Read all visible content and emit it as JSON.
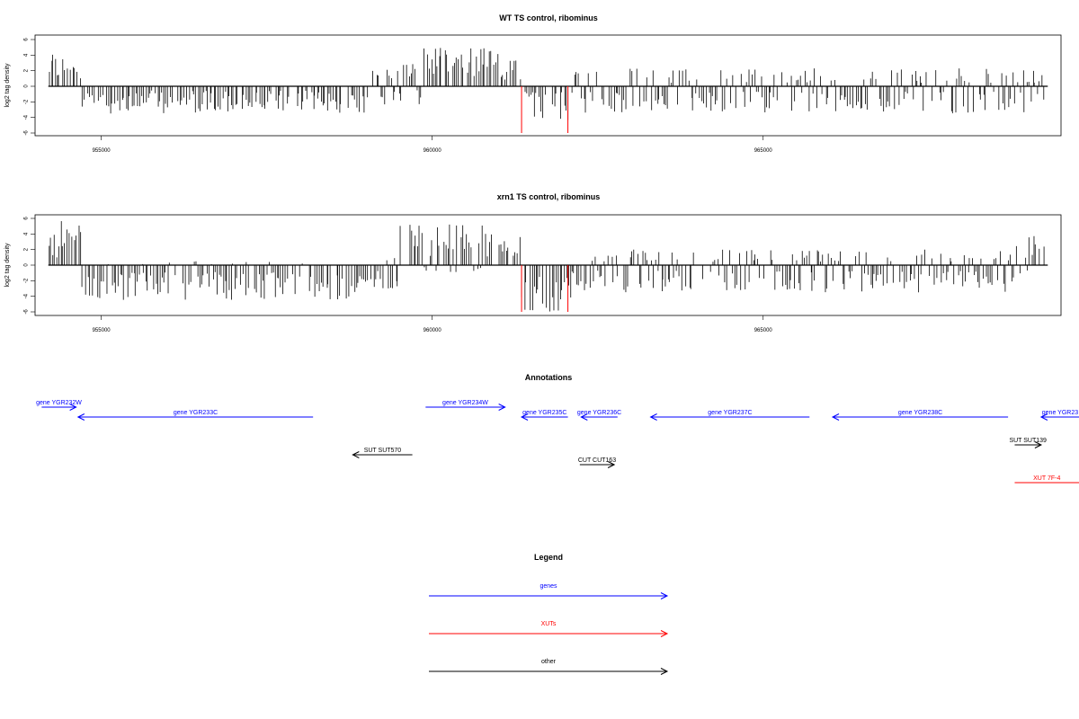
{
  "chart_data": [
    {
      "type": "bar",
      "title": "WT TS control, ribominus",
      "ylabel": "log2 tag density",
      "xlabel": "",
      "xlim": [
        954200,
        969300
      ],
      "ylim": [
        -6,
        6
      ],
      "yticks": [
        -6,
        -4,
        -2,
        0,
        2,
        4,
        6
      ],
      "xticks": [
        955000,
        960000,
        965000
      ],
      "xtick_labels": [
        "955000",
        "960000",
        "965000"
      ],
      "highlight_color": "#ff0000",
      "highlights": [
        {
          "x": 961350,
          "y": -6
        },
        {
          "x": 962050,
          "y": -6
        }
      ],
      "profile": [
        {
          "from": 954200,
          "to": 954700,
          "min": 0,
          "max": 4.5
        },
        {
          "from": 954700,
          "to": 959000,
          "min": -3.5,
          "max": 0
        },
        {
          "from": 959000,
          "to": 959850,
          "min": -2.5,
          "max": 3.0
        },
        {
          "from": 959850,
          "to": 961350,
          "min": 0,
          "max": 5.0
        },
        {
          "from": 961350,
          "to": 962100,
          "min": -4.5,
          "max": 0
        },
        {
          "from": 962100,
          "to": 969000,
          "min": -3.5,
          "max": 2.3
        },
        {
          "from": 969000,
          "to": 969250,
          "min": -3.0,
          "max": 2.0
        }
      ]
    },
    {
      "type": "bar",
      "title": "xrn1 TS control, ribominus",
      "ylabel": "log2 tag density",
      "xlabel": "",
      "xlim": [
        954200,
        969300
      ],
      "ylim": [
        -6,
        6
      ],
      "yticks": [
        -6,
        -4,
        -2,
        0,
        2,
        4,
        6
      ],
      "xticks": [
        955000,
        960000,
        965000
      ],
      "xtick_labels": [
        "955000",
        "960000",
        "965000"
      ],
      "highlight_color": "#ff0000",
      "highlights": [
        {
          "x": 961350,
          "y": -6
        },
        {
          "x": 962050,
          "y": -6
        }
      ],
      "profile": [
        {
          "from": 954200,
          "to": 954700,
          "min": 0,
          "max": 6.0
        },
        {
          "from": 954700,
          "to": 958900,
          "min": -4.5,
          "max": 0.5
        },
        {
          "from": 958900,
          "to": 959500,
          "min": -3.0,
          "max": 1.5
        },
        {
          "from": 959500,
          "to": 961350,
          "min": -1.0,
          "max": 5.3
        },
        {
          "from": 961350,
          "to": 962100,
          "min": -6.0,
          "max": 0
        },
        {
          "from": 962100,
          "to": 968800,
          "min": -3.5,
          "max": 2.0
        },
        {
          "from": 968800,
          "to": 969250,
          "min": -3.0,
          "max": 3.8
        }
      ]
    }
  ],
  "annotations": {
    "title": "Annotations",
    "items": [
      {
        "label": "gene YGR232W",
        "start": 954100,
        "end": 954620,
        "strand": "+",
        "category": "genes",
        "row": 0
      },
      {
        "label": "gene YGR233C",
        "start": 954650,
        "end": 958200,
        "strand": "-",
        "category": "genes",
        "row": 1
      },
      {
        "label": "gene YGR234W",
        "start": 959900,
        "end": 961100,
        "strand": "+",
        "category": "genes",
        "row": 0
      },
      {
        "label": "gene YGR235C",
        "start": 961350,
        "end": 962050,
        "strand": "-",
        "category": "genes",
        "row": 1
      },
      {
        "label": "gene YGR236C",
        "start": 962250,
        "end": 962800,
        "strand": "-",
        "category": "genes",
        "row": 1
      },
      {
        "label": "gene YGR237C",
        "start": 963300,
        "end": 965700,
        "strand": "-",
        "category": "genes",
        "row": 1
      },
      {
        "label": "gene YGR238C",
        "start": 966050,
        "end": 968700,
        "strand": "-",
        "category": "genes",
        "row": 1
      },
      {
        "label": "gene YGR23",
        "start": 969200,
        "end": 970000,
        "strand": "-",
        "category": "genes",
        "row": 1
      },
      {
        "label": "SUT SUT570",
        "start": 958800,
        "end": 959700,
        "strand": "-",
        "category": "other",
        "row": 2
      },
      {
        "label": "CUT CUT163",
        "start": 962230,
        "end": 962750,
        "strand": "+",
        "category": "other",
        "row": 3
      },
      {
        "label": "SUT SUT139",
        "start": 968800,
        "end": 969200,
        "strand": "+",
        "category": "other",
        "row": 4
      },
      {
        "label": "XUT 7F-4",
        "start": 968800,
        "end": 970000,
        "strand": "+",
        "category": "XUTs",
        "row": 5
      }
    ]
  },
  "legend": {
    "title": "Legend",
    "items": [
      {
        "label": "genes",
        "color": "#0000ff"
      },
      {
        "label": "XUTs",
        "color": "#ff0000"
      },
      {
        "label": "other",
        "color": "#000000"
      }
    ]
  }
}
